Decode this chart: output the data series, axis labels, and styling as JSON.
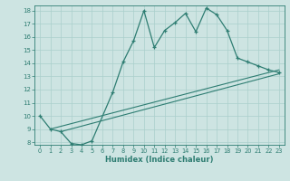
{
  "xlabel": "Humidex (Indice chaleur)",
  "ylabel": "",
  "bg_color": "#cde4e2",
  "line_color": "#2e7d72",
  "grid_color": "#aacfcc",
  "xlim_min": -0.5,
  "xlim_max": 23.5,
  "ylim_min": 7.8,
  "ylim_max": 18.4,
  "xticks": [
    0,
    1,
    2,
    3,
    4,
    5,
    6,
    7,
    8,
    9,
    10,
    11,
    12,
    13,
    14,
    15,
    16,
    17,
    18,
    19,
    20,
    21,
    22,
    23
  ],
  "yticks": [
    8,
    9,
    10,
    11,
    12,
    13,
    14,
    15,
    16,
    17,
    18
  ],
  "series1_x": [
    0,
    1,
    2,
    3,
    4,
    5,
    7,
    8,
    9,
    10,
    11,
    12,
    13,
    14,
    15,
    16,
    17,
    18,
    19,
    20,
    21,
    22,
    23
  ],
  "series1_y": [
    10.0,
    9.0,
    8.8,
    7.9,
    7.8,
    8.1,
    11.8,
    14.1,
    15.7,
    18.0,
    15.2,
    16.5,
    17.1,
    17.8,
    16.4,
    18.2,
    17.7,
    16.5,
    14.4,
    14.1,
    13.8,
    13.5,
    13.3
  ],
  "series2_x": [
    1,
    23
  ],
  "series2_y": [
    9.0,
    13.5
  ],
  "series3_x": [
    2,
    23
  ],
  "series3_y": [
    8.8,
    13.2
  ]
}
